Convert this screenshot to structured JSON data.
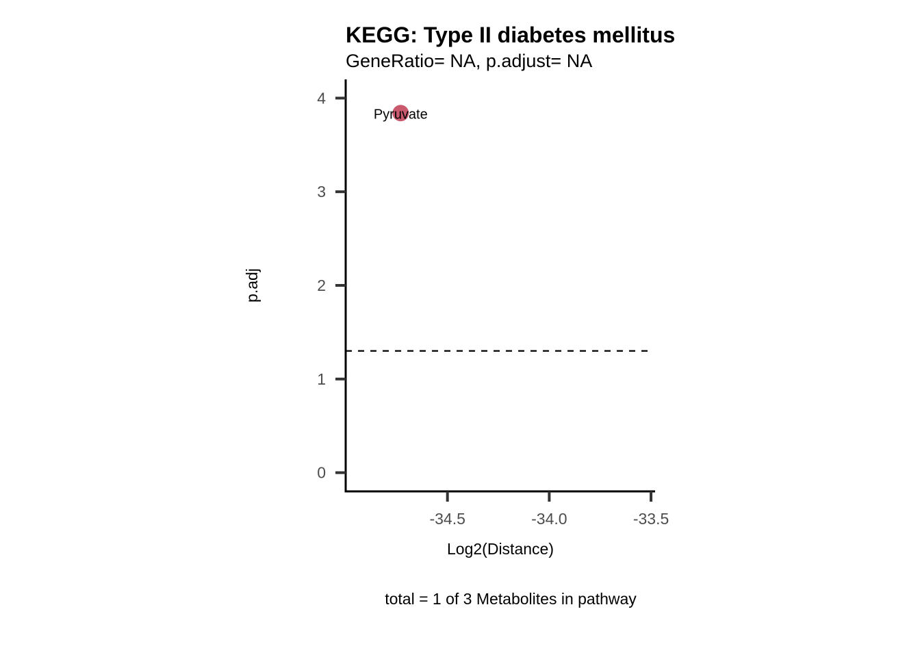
{
  "chart_data": {
    "type": "scatter",
    "title": "KEGG: Type II diabetes mellitus",
    "subtitle": "GeneRatio= NA, p.adjust= NA",
    "xlabel": "Log2(Distance)",
    "ylabel": "p.adj",
    "caption": "total = 1 of 3 Metabolites in pathway",
    "xlim": [
      -35.0,
      -33.48
    ],
    "ylim": [
      -0.2,
      4.2
    ],
    "x_ticks": [
      {
        "value": -34.5,
        "label": "-34.5"
      },
      {
        "value": -34.0,
        "label": "-34.0"
      },
      {
        "value": -33.5,
        "label": "-33.5"
      }
    ],
    "y_ticks": [
      {
        "value": 0,
        "label": "0"
      },
      {
        "value": 1,
        "label": "1"
      },
      {
        "value": 2,
        "label": "2"
      },
      {
        "value": 3,
        "label": "3"
      },
      {
        "value": 4,
        "label": "4"
      }
    ],
    "points": [
      {
        "x": -34.73,
        "y": 3.84,
        "label": "Pyruvate",
        "color": "#c95a6e"
      }
    ],
    "threshold_y": 1.3,
    "grid": false,
    "colors": {
      "axis": "#000000",
      "tick": "#333333",
      "tick_label": "#4d4d4d",
      "text": "#000000",
      "threshold": "#000000"
    }
  }
}
